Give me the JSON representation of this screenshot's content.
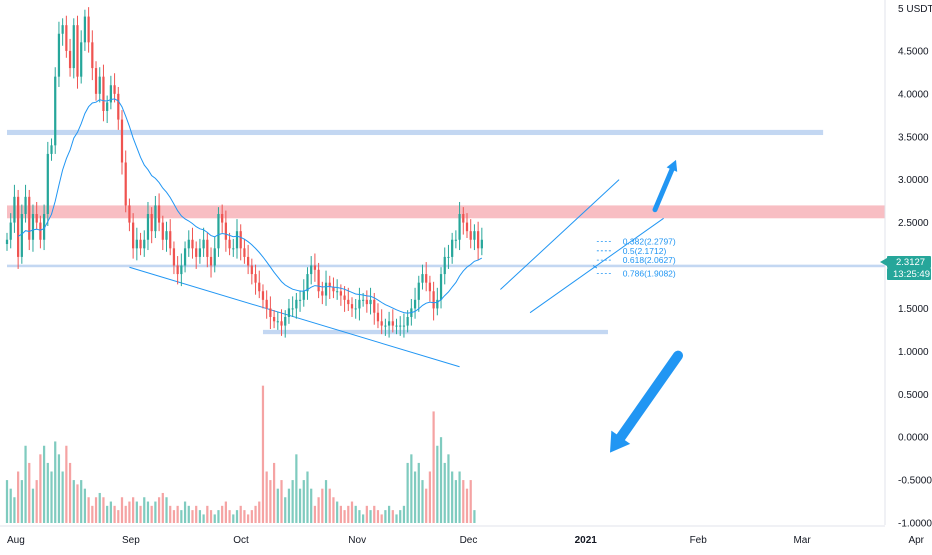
{
  "chart_data": {
    "type": "candlestick",
    "currency_label": "USDT",
    "y_axis": {
      "min": -1.0,
      "max": 5.0,
      "ticks": [
        "5.0000",
        "4.5000",
        "4.0000",
        "3.5000",
        "3.0000",
        "2.5000",
        "2.0000",
        "1.5000",
        "1.0000",
        "0.5000",
        "0.0000",
        "-0.5000",
        "-1.0000"
      ],
      "tick_values": [
        5.0,
        4.5,
        4.0,
        3.5,
        3.0,
        2.5,
        2.0,
        1.5,
        1.0,
        0.5,
        0.0,
        -0.5,
        -1.0
      ]
    },
    "x_axis": {
      "labels": [
        {
          "text": "Aug",
          "day": 0,
          "bold": false
        },
        {
          "text": "Sep",
          "day": 31,
          "bold": false
        },
        {
          "text": "Oct",
          "day": 61,
          "bold": false
        },
        {
          "text": "Nov",
          "day": 92,
          "bold": false
        },
        {
          "text": "Dec",
          "day": 122,
          "bold": false
        },
        {
          "text": "2021",
          "day": 153,
          "bold": true
        },
        {
          "text": "Feb",
          "day": 184,
          "bold": false
        },
        {
          "text": "Mar",
          "day": 212,
          "bold": false
        },
        {
          "text": "Apr",
          "day": 243,
          "bold": false
        }
      ]
    },
    "last_price": "2.3127",
    "countdown": "13:25:49",
    "fib_levels": [
      {
        "label": "0.382(2.2797)",
        "price": 2.2797
      },
      {
        "label": "0.5(2.1712)",
        "price": 2.1712
      },
      {
        "label": "0.618(2.0627)",
        "price": 2.0627
      },
      {
        "label": "0.786(1.9082)",
        "price": 1.9082
      }
    ],
    "horizontal_zones": [
      {
        "name": "resistance-blue-zone",
        "from": 3.52,
        "to": 3.58,
        "day_start": 0,
        "day_end": 220,
        "color": "#b8d0f0"
      },
      {
        "name": "resistance-red-zone",
        "from": 2.55,
        "to": 2.7,
        "day_start": 0,
        "day_end": 250,
        "color": "#f7b3b8"
      },
      {
        "name": "support-line",
        "from": 1.98,
        "to": 2.01,
        "day_start": 0,
        "day_end": 250,
        "color": "#b8d0f0"
      },
      {
        "name": "bottom-support-zone",
        "from": 1.2,
        "to": 1.25,
        "day_start": 69,
        "day_end": 162,
        "color": "#b8d0f0"
      }
    ],
    "close_series": [
      2.3,
      2.5,
      2.8,
      2.1,
      2.6,
      2.8,
      2.3,
      2.6,
      2.5,
      2.3,
      2.6,
      3.3,
      3.4,
      4.2,
      4.7,
      4.8,
      4.5,
      4.3,
      4.8,
      4.2,
      4.6,
      4.9,
      4.6,
      4.3,
      4.0,
      4.2,
      3.8,
      3.9,
      4.1,
      4.0,
      3.7,
      3.2,
      2.7,
      2.5,
      2.2,
      2.3,
      2.2,
      2.3,
      2.6,
      2.4,
      2.7,
      2.5,
      2.3,
      2.4,
      2.2,
      2.0,
      1.9,
      2.0,
      2.2,
      2.3,
      2.2,
      2.1,
      2.2,
      2.3,
      2.1,
      2.0,
      2.2,
      2.6,
      2.5,
      2.3,
      2.2,
      2.2,
      2.4,
      2.2,
      2.1,
      2.0,
      1.9,
      1.8,
      1.7,
      1.6,
      1.5,
      1.4,
      1.35,
      1.35,
      1.3,
      1.4,
      1.5,
      1.5,
      1.6,
      1.6,
      1.7,
      1.9,
      2.0,
      1.95,
      1.7,
      1.65,
      1.8,
      1.75,
      1.7,
      1.7,
      1.65,
      1.6,
      1.55,
      1.5,
      1.5,
      1.6,
      1.6,
      1.55,
      1.6,
      1.45,
      1.35,
      1.3,
      1.3,
      1.35,
      1.3,
      1.3,
      1.3,
      1.3,
      1.4,
      1.5,
      1.6,
      1.8,
      1.9,
      1.8,
      1.7,
      1.5,
      1.6,
      1.9,
      2.1,
      2.1,
      2.3,
      2.3,
      2.6,
      2.5,
      2.4,
      2.3,
      2.4,
      2.2,
      2.3
    ],
    "volume_series": [
      -0.5,
      -0.6,
      -0.7,
      -0.4,
      -0.5,
      -0.1,
      -0.3,
      -0.6,
      -0.5,
      -0.2,
      -0.1,
      -0.3,
      -0.4,
      -0.05,
      -0.2,
      -0.4,
      -0.1,
      -0.3,
      -0.5,
      -0.55,
      -0.5,
      -0.6,
      -0.7,
      -0.8,
      -0.7,
      -0.65,
      -0.7,
      -0.8,
      -0.75,
      -0.8,
      -0.85,
      -0.7,
      -0.8,
      -0.75,
      -0.7,
      -0.75,
      -0.8,
      -0.7,
      -0.75,
      -0.8,
      -0.75,
      -0.7,
      -0.65,
      -0.7,
      -0.8,
      -0.85,
      -0.8,
      -0.85,
      -0.75,
      -0.8,
      -0.85,
      -0.8,
      -0.85,
      -0.9,
      -0.8,
      -0.85,
      -0.9,
      -0.85,
      -0.8,
      -0.75,
      -0.85,
      -0.9,
      -0.85,
      -0.8,
      -0.85,
      -0.9,
      -0.85,
      -0.8,
      -0.75,
      0.6,
      -0.4,
      -0.5,
      -0.3,
      -0.6,
      -0.5,
      -0.7,
      -0.6,
      -0.5,
      -0.2,
      -0.6,
      -0.5,
      -0.4,
      -0.6,
      -0.8,
      -0.7,
      -0.6,
      -0.5,
      -0.6,
      -0.7,
      -0.75,
      -0.8,
      -0.85,
      -0.8,
      -0.75,
      -0.8,
      -0.85,
      -0.9,
      -0.8,
      -0.85,
      -0.8,
      -0.85,
      -0.9,
      -0.85,
      -0.8,
      -0.85,
      -0.9,
      -0.85,
      -0.8,
      -0.3,
      -0.2,
      -0.4,
      -0.3,
      -0.5,
      -0.6,
      -0.4,
      0.3,
      -0.1,
      0.0,
      -0.3,
      -0.2,
      -0.4,
      -0.5,
      -0.4,
      -0.5,
      -0.6,
      -0.5,
      -0.85
    ]
  }
}
